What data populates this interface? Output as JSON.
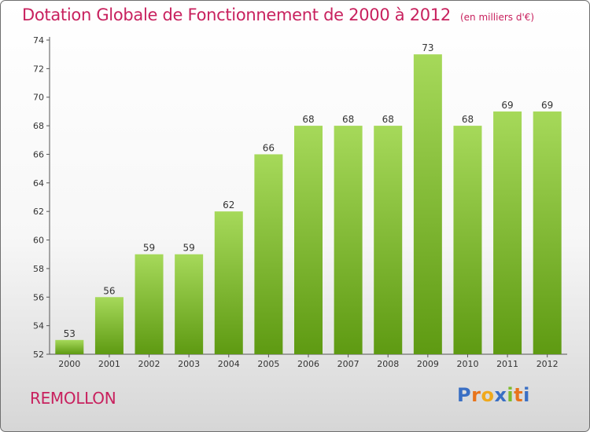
{
  "header": {
    "title": "Dotation Globale de Fonctionnement de 2000 à 2012",
    "subtitle": "(en milliers d'€)"
  },
  "footer": {
    "place": "REMOLLON",
    "logo_text": "Proxiti"
  },
  "colors": {
    "title": "#c8215e",
    "bar_light": "#a6d95a",
    "bar_dark": "#5e9a12",
    "logo_letters": [
      "#3a6fc4",
      "#e8741c",
      "#f0a91c",
      "#3a6fc4",
      "#7dbb2c",
      "#e8741c",
      "#3a6fc4"
    ]
  },
  "chart_data": {
    "type": "bar",
    "title": "Dotation Globale de Fonctionnement de 2000 à 2012",
    "subtitle": "(en milliers d'€)",
    "categories": [
      "2000",
      "2001",
      "2002",
      "2003",
      "2004",
      "2005",
      "2006",
      "2007",
      "2008",
      "2009",
      "2010",
      "2011",
      "2012"
    ],
    "values": [
      53,
      56,
      59,
      59,
      62,
      66,
      68,
      68,
      68,
      73,
      68,
      69,
      69
    ],
    "xlabel": "",
    "ylabel": "",
    "ylim": [
      52,
      74
    ],
    "yticks": [
      52,
      54,
      56,
      58,
      60,
      62,
      64,
      66,
      68,
      70,
      72,
      74
    ],
    "grid": false,
    "legend": "none",
    "data_labels": true
  }
}
